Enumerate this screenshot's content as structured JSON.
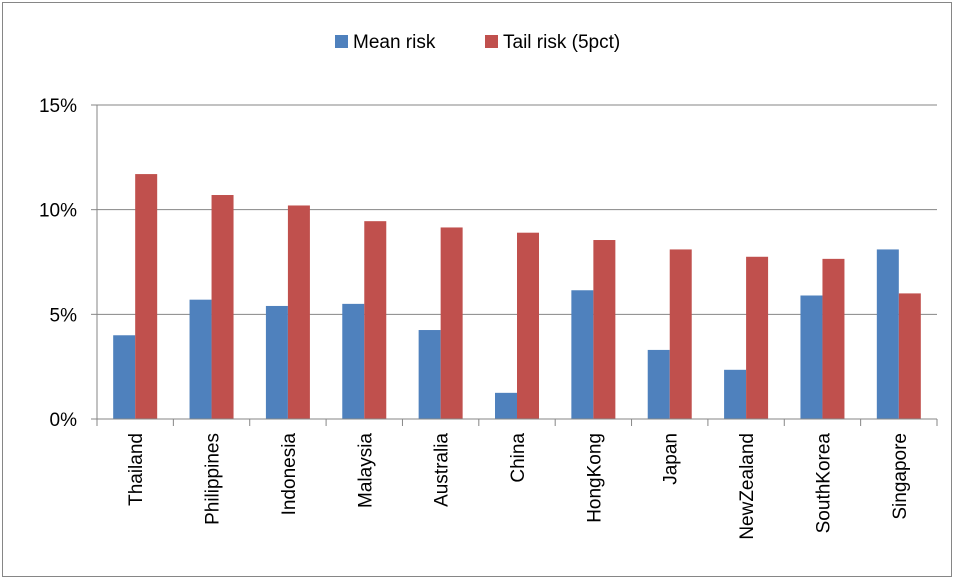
{
  "chart_data": {
    "type": "bar",
    "categories": [
      "Thailand",
      "Philippines",
      "Indonesia",
      "Malaysia",
      "Australia",
      "China",
      "HongKong",
      "Japan",
      "NewZealand",
      "SouthKorea",
      "Singapore"
    ],
    "series": [
      {
        "name": "Mean risk",
        "color": "#4f81bd",
        "values": [
          4.0,
          5.7,
          5.4,
          5.5,
          4.25,
          1.25,
          6.15,
          3.3,
          2.35,
          5.9,
          8.1
        ]
      },
      {
        "name": "Tail risk (5pct)",
        "color": "#c0504d",
        "values": [
          11.7,
          10.7,
          10.2,
          9.45,
          9.15,
          8.9,
          8.55,
          8.1,
          7.75,
          7.65,
          6.0
        ]
      }
    ],
    "ylim": [
      0,
      15
    ],
    "yticks": [
      0,
      5,
      10,
      15
    ],
    "ytick_labels": [
      "0%",
      "5%",
      "10%",
      "15%"
    ],
    "grid": true,
    "legend_position": "top"
  }
}
